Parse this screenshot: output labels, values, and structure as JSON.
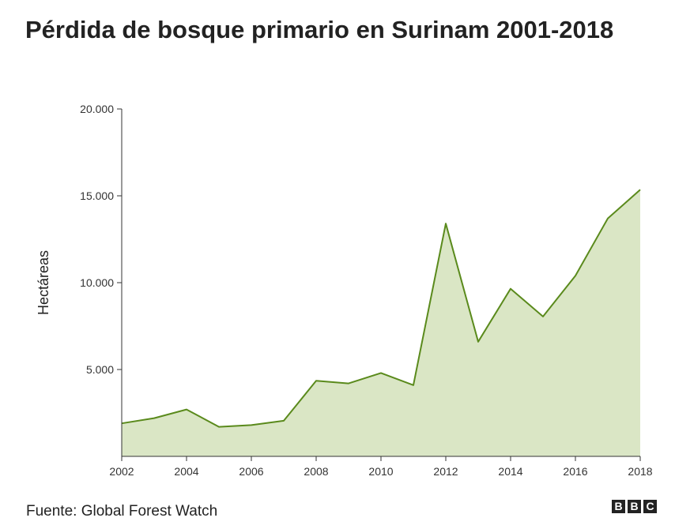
{
  "title": "Pérdida de bosque primario en Surinam 2001-2018",
  "source": "Fuente: Global Forest Watch",
  "logo": [
    "B",
    "B",
    "C"
  ],
  "colors": {
    "line": "#5a8a1c",
    "fill": "#dae6c5",
    "axis": "#333333"
  },
  "chart_data": {
    "type": "area",
    "title": "Pérdida de bosque primario en Surinam 2001-2018",
    "xlabel": "",
    "ylabel": "Hectáreas",
    "x": [
      2002,
      2003,
      2004,
      2005,
      2006,
      2007,
      2008,
      2009,
      2010,
      2011,
      2012,
      2013,
      2014,
      2015,
      2016,
      2017,
      2018
    ],
    "values": [
      1900,
      2200,
      2700,
      1700,
      1800,
      2050,
      4350,
      4200,
      4800,
      4100,
      13400,
      6600,
      9650,
      8050,
      10400,
      13700,
      15350
    ],
    "xlim": [
      2002,
      2018
    ],
    "ylim": [
      0,
      20000
    ],
    "xticks": [
      2002,
      2004,
      2006,
      2008,
      2010,
      2012,
      2014,
      2016,
      2018
    ],
    "yticks": [
      5000,
      10000,
      15000,
      20000
    ],
    "ytick_labels": [
      "5.000",
      "10.000",
      "15.000",
      "20.000"
    ],
    "grid": false,
    "legend": "none"
  }
}
